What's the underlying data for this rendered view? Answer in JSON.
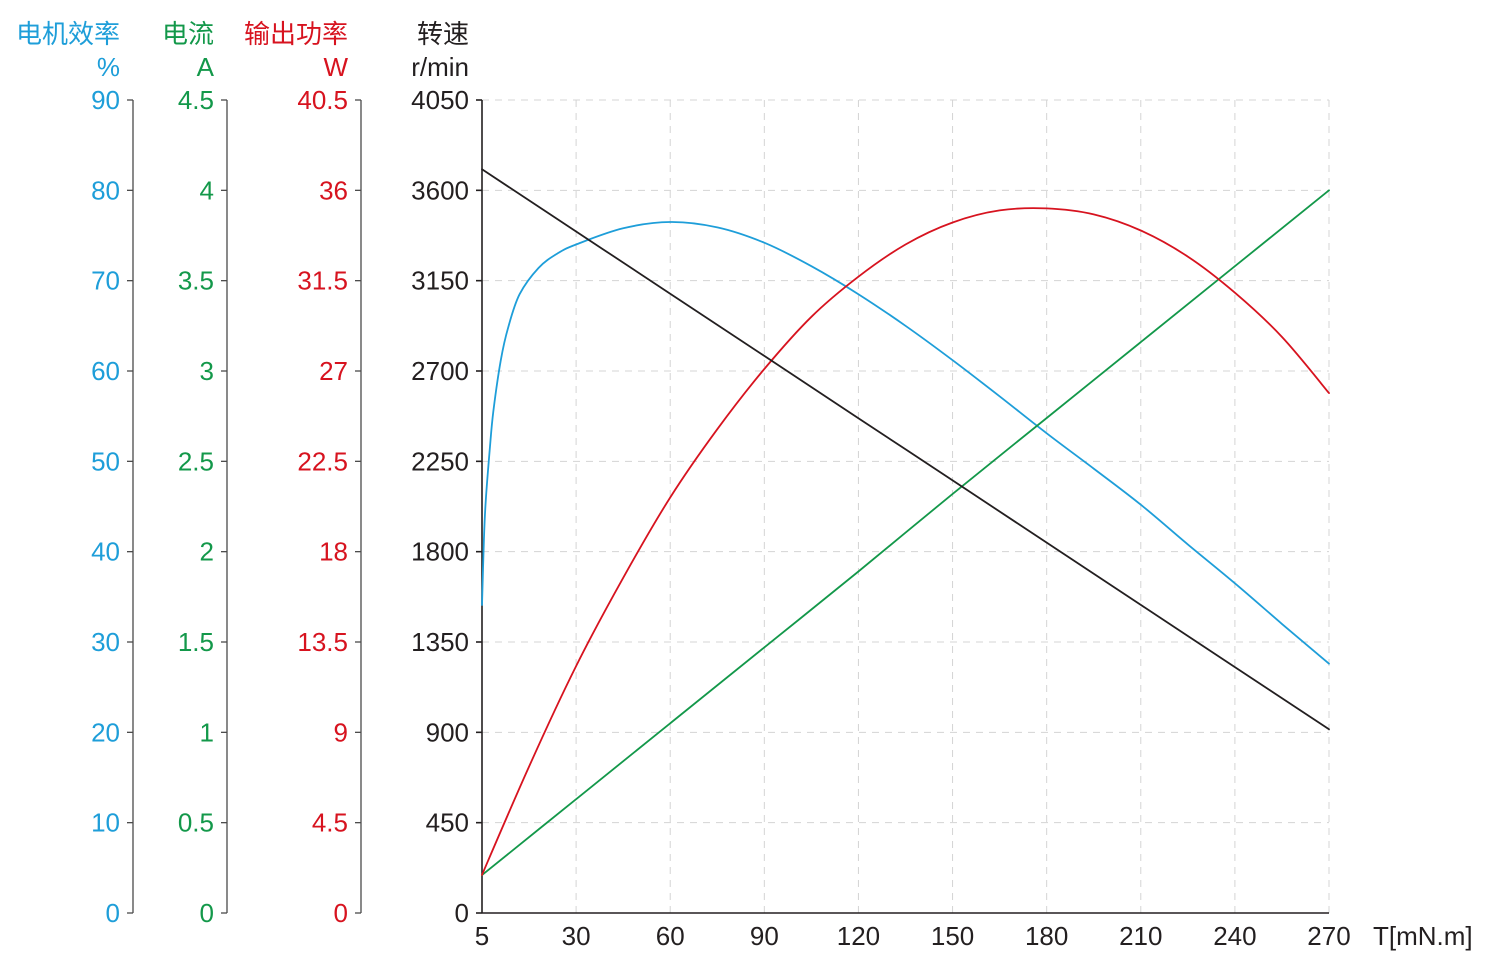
{
  "chart_data": {
    "type": "line",
    "x_label": "T[mN.m]",
    "x_ticks": [
      5,
      30,
      60,
      90,
      120,
      150,
      180,
      210,
      240,
      270
    ],
    "xlim": [
      5,
      270
    ],
    "grid": true,
    "y_axes": [
      {
        "title": "电机效率",
        "unit": "%",
        "color": "#1E9ED9",
        "ylim": [
          0,
          90
        ],
        "ticks": [
          0,
          10,
          20,
          30,
          40,
          50,
          60,
          70,
          80,
          90
        ],
        "points": [
          [
            5,
            34.1
          ],
          [
            5.5,
            41.3
          ],
          [
            6,
            45.7
          ],
          [
            7,
            51.0
          ],
          [
            8,
            55.5
          ],
          [
            10,
            61.2
          ],
          [
            12,
            64.9
          ],
          [
            15,
            68.5
          ],
          [
            20,
            71.4
          ],
          [
            25,
            73.0
          ],
          [
            30,
            74.0
          ],
          [
            45,
            75.8
          ],
          [
            60,
            76.5
          ],
          [
            75,
            75.9
          ],
          [
            90,
            74.2
          ],
          [
            105,
            71.6
          ],
          [
            120,
            68.5
          ],
          [
            135,
            65.0
          ],
          [
            150,
            61.2
          ],
          [
            165,
            57.2
          ],
          [
            180,
            53.1
          ],
          [
            195,
            49.2
          ],
          [
            210,
            45.2
          ],
          [
            225,
            40.8
          ],
          [
            240,
            36.5
          ],
          [
            255,
            32.0
          ],
          [
            270,
            27.6
          ]
        ]
      },
      {
        "title": "电流",
        "unit": "A",
        "color": "#13984A",
        "ylim": [
          0,
          4.5
        ],
        "ticks": [
          0,
          0.5,
          1,
          1.5,
          2,
          2.5,
          3,
          3.5,
          4,
          4.5
        ],
        "points": [
          [
            5,
            0.21
          ],
          [
            30,
            0.63
          ],
          [
            60,
            1.05
          ],
          [
            90,
            1.47
          ],
          [
            120,
            1.89
          ],
          [
            150,
            2.32
          ],
          [
            180,
            2.74
          ],
          [
            210,
            3.16
          ],
          [
            240,
            3.58
          ],
          [
            270,
            4.0
          ]
        ]
      },
      {
        "title": "输出功率",
        "unit": "W",
        "color": "#D7131F",
        "ylim": [
          0,
          40.5
        ],
        "ticks": [
          0,
          4.5,
          9,
          13.5,
          18,
          22.5,
          27,
          31.5,
          36,
          40.5
        ],
        "points": [
          [
            5,
            1.9
          ],
          [
            17.5,
            7.3
          ],
          [
            30,
            12.3
          ],
          [
            45,
            16.7
          ],
          [
            60,
            20.7
          ],
          [
            75,
            24.1
          ],
          [
            90,
            27.1
          ],
          [
            105,
            29.7
          ],
          [
            120,
            31.7
          ],
          [
            135,
            33.3
          ],
          [
            150,
            34.4
          ],
          [
            165,
            35.0
          ],
          [
            180,
            35.1
          ],
          [
            195,
            34.8
          ],
          [
            210,
            34.0
          ],
          [
            225,
            32.7
          ],
          [
            240,
            30.9
          ],
          [
            255,
            28.7
          ],
          [
            270,
            25.9
          ]
        ]
      },
      {
        "title": "转速",
        "unit": "r/min",
        "color": "#231F20",
        "ylim": [
          0,
          4050
        ],
        "ticks": [
          0,
          450,
          900,
          1350,
          1800,
          2250,
          2700,
          3150,
          3600,
          4050
        ],
        "points": [
          [
            5,
            3705
          ],
          [
            30,
            3395
          ],
          [
            60,
            3085
          ],
          [
            90,
            2775
          ],
          [
            120,
            2465
          ],
          [
            150,
            2155
          ],
          [
            180,
            1845
          ],
          [
            210,
            1535
          ],
          [
            240,
            1225
          ],
          [
            270,
            915
          ]
        ]
      }
    ]
  }
}
